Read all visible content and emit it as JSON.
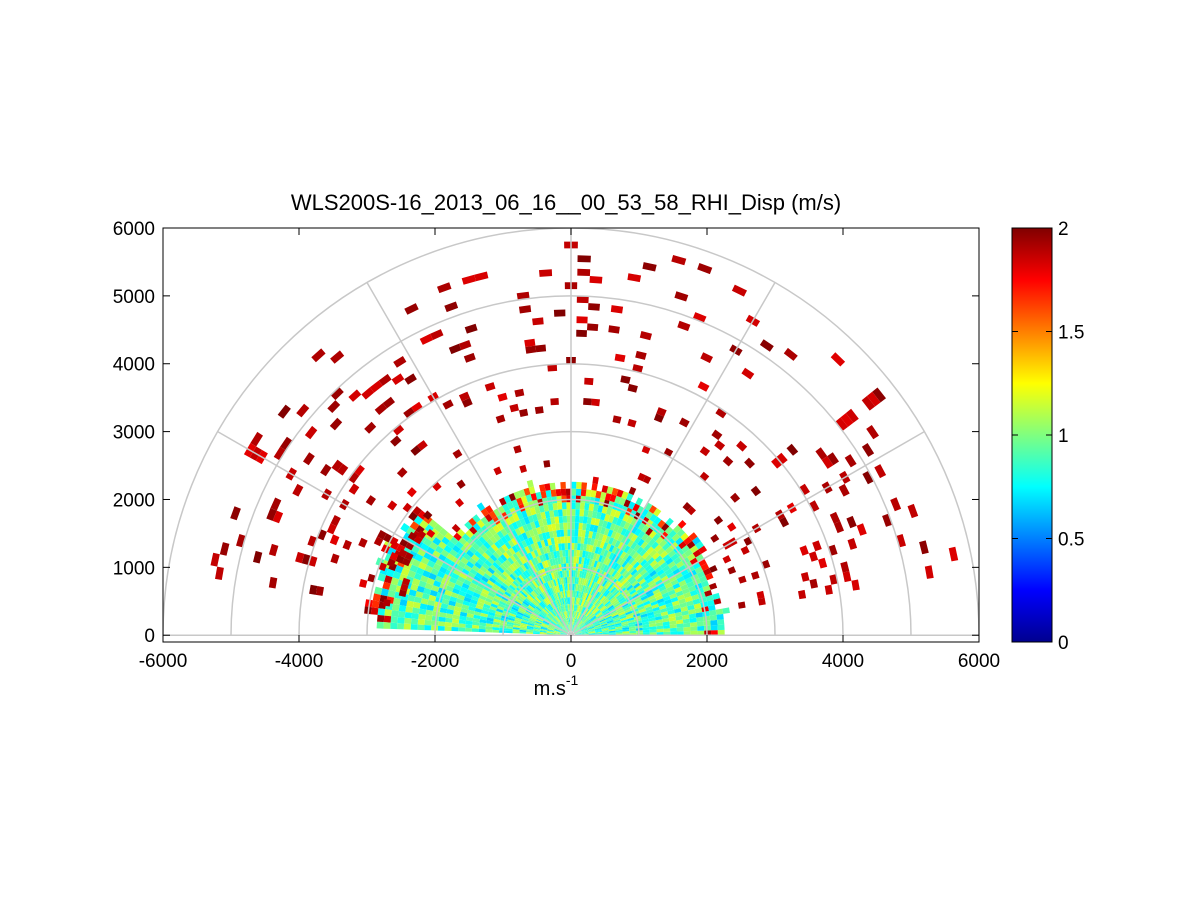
{
  "chart_data": {
    "type": "heatmap",
    "title": "WLS200S-16_2013_06_16__00_53_58_RHI_Disp (m/s)",
    "xlabel_base": "m.s",
    "xlabel_exp": "-1",
    "ylabel": "",
    "xlim": [
      -6000,
      6000
    ],
    "ylim": [
      -100,
      6000
    ],
    "xticks": [
      "-6000",
      "-4000",
      "-2000",
      "0",
      "2000",
      "4000",
      "6000"
    ],
    "yticks": [
      "0",
      "1000",
      "2000",
      "3000",
      "4000",
      "5000",
      "6000"
    ],
    "polar_grid": {
      "range_rings": [
        1000,
        2000,
        3000,
        4000,
        5000,
        6000
      ],
      "spokes_deg": [
        0,
        30,
        60,
        90,
        120,
        150,
        180
      ]
    },
    "colorbar": {
      "colormap": "jet",
      "range": [
        0,
        2
      ],
      "ticks": [
        "0",
        "0.5",
        "1",
        "1.5",
        "2"
      ]
    },
    "scan_summary": [
      {
        "sector": "elevation 0-40 deg, range 0-2300 m (right)",
        "value": 0.9
      },
      {
        "sector": "elevation 40-140 deg, range 0-2300 m (center)",
        "value": 0.95
      },
      {
        "sector": "elevation 140-180 deg, range 0-3000 m (left)",
        "value": 0.9
      },
      {
        "sector": "upper range gates and sparse far gates",
        "value": 2.0
      }
    ]
  }
}
